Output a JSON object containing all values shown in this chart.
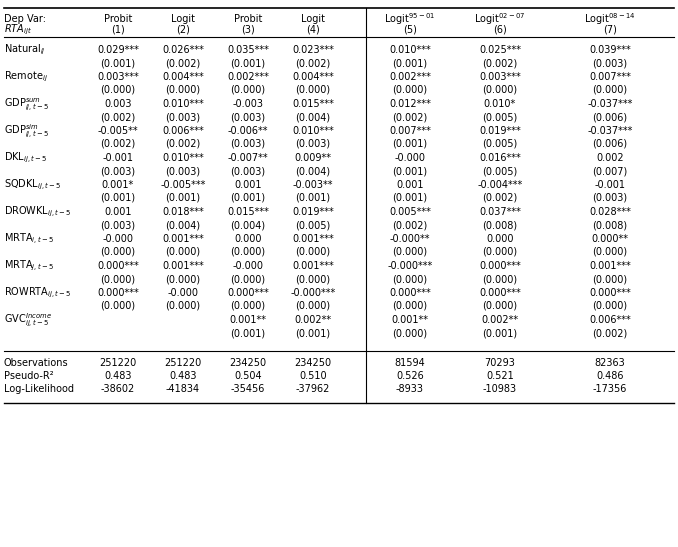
{
  "col_headers_line1": [
    "Dep Var:",
    "Probit",
    "Logit",
    "Probit",
    "Logit",
    "Logit^{95-01}",
    "Logit^{02-07}",
    "Logit^{08-14}"
  ],
  "col_headers_line2": [
    "RTA_{ijt}",
    "(1)",
    "(2)",
    "(3)",
    "(4)",
    "(5)",
    "(6)",
    "(7)"
  ],
  "rows": [
    {
      "var": "Natural_{ij}",
      "vals": [
        "0.029***",
        "0.026***",
        "0.035***",
        "0.023***",
        "0.010***",
        "0.025***",
        "0.039***"
      ],
      "se": [
        "(0.001)",
        "(0.002)",
        "(0.001)",
        "(0.002)",
        "(0.001)",
        "(0.002)",
        "(0.003)"
      ]
    },
    {
      "var": "Remote_{ij}",
      "vals": [
        "0.003***",
        "0.004***",
        "0.002***",
        "0.004***",
        "0.002***",
        "0.003***",
        "0.007***"
      ],
      "se": [
        "(0.000)",
        "(0.000)",
        "(0.000)",
        "(0.000)",
        "(0.000)",
        "(0.000)",
        "(0.000)"
      ]
    },
    {
      "var": "GDP^{sum}_{ij,t-5}",
      "vals": [
        "0.003",
        "0.010***",
        "-0.003",
        "0.015***",
        "0.012***",
        "0.010*",
        "-0.037***"
      ],
      "se": [
        "(0.002)",
        "(0.003)",
        "(0.003)",
        "(0.004)",
        "(0.002)",
        "(0.005)",
        "(0.006)"
      ]
    },
    {
      "var": "GDP^{sim}_{ij,t-5}",
      "vals": [
        "-0.005**",
        "0.006***",
        "-0.006**",
        "0.010***",
        "0.007***",
        "0.019***",
        "-0.037***"
      ],
      "se": [
        "(0.002)",
        "(0.002)",
        "(0.003)",
        "(0.003)",
        "(0.001)",
        "(0.005)",
        "(0.006)"
      ]
    },
    {
      "var": "DKL_{ij,t-5}",
      "vals": [
        "-0.001",
        "0.010***",
        "-0.007**",
        "0.009**",
        "-0.000",
        "0.016***",
        "0.002"
      ],
      "se": [
        "(0.003)",
        "(0.003)",
        "(0.003)",
        "(0.004)",
        "(0.001)",
        "(0.005)",
        "(0.007)"
      ]
    },
    {
      "var": "SQDKL_{ij,t-5}",
      "vals": [
        "0.001*",
        "-0.005***",
        "0.001",
        "-0.003**",
        "0.001",
        "-0.004***",
        "-0.001"
      ],
      "se": [
        "(0.001)",
        "(0.001)",
        "(0.001)",
        "(0.001)",
        "(0.001)",
        "(0.002)",
        "(0.003)"
      ]
    },
    {
      "var": "DROWKL_{ij,t-5}",
      "vals": [
        "0.001",
        "0.018***",
        "0.015***",
        "0.019***",
        "0.005***",
        "0.037***",
        "0.028***"
      ],
      "se": [
        "(0.003)",
        "(0.004)",
        "(0.004)",
        "(0.005)",
        "(0.002)",
        "(0.008)",
        "(0.008)"
      ]
    },
    {
      "var": "MRTA_{i,t-5}",
      "vals": [
        "-0.000",
        "0.001***",
        "0.000",
        "0.001***",
        "-0.000**",
        "0.000",
        "0.000**"
      ],
      "se": [
        "(0.000)",
        "(0.000)",
        "(0.000)",
        "(0.000)",
        "(0.000)",
        "(0.000)",
        "(0.000)"
      ]
    },
    {
      "var": "MRTA_{j,t-5}",
      "vals": [
        "0.000***",
        "0.001***",
        "-0.000",
        "0.001***",
        "-0.000***",
        "0.000***",
        "0.001***"
      ],
      "se": [
        "(0.000)",
        "(0.000)",
        "(0.000)",
        "(0.000)",
        "(0.000)",
        "(0.000)",
        "(0.000)"
      ]
    },
    {
      "var": "ROWRTA_{ij,t-5}",
      "vals": [
        "0.000***",
        "-0.000",
        "0.000***",
        "-0.000***",
        "0.000***",
        "0.000***",
        "0.000***"
      ],
      "se": [
        "(0.000)",
        "(0.000)",
        "(0.000)",
        "(0.000)",
        "(0.000)",
        "(0.000)",
        "(0.000)"
      ]
    },
    {
      "var": "GVC^{Income}_{ij,t-5}",
      "vals": [
        "",
        "",
        "0.001**",
        "0.002**",
        "0.001**",
        "0.002**",
        "0.006***"
      ],
      "se": [
        "",
        "",
        "(0.001)",
        "(0.001)",
        "(0.000)",
        "(0.001)",
        "(0.002)"
      ]
    }
  ],
  "footer": [
    [
      "Observations",
      "251220",
      "251220",
      "234250",
      "234250",
      "81594",
      "70293",
      "82363"
    ],
    [
      "Pseudo-R²",
      "0.483",
      "0.483",
      "0.504",
      "0.510",
      "0.526",
      "0.521",
      "0.486"
    ],
    [
      "Log-Likelihood",
      "-38602",
      "-41834",
      "-35456",
      "-37962",
      "-8933",
      "-10983",
      "-17356"
    ]
  ],
  "bg_color": "#ffffff",
  "text_color": "#000000",
  "font_size": 7.0
}
